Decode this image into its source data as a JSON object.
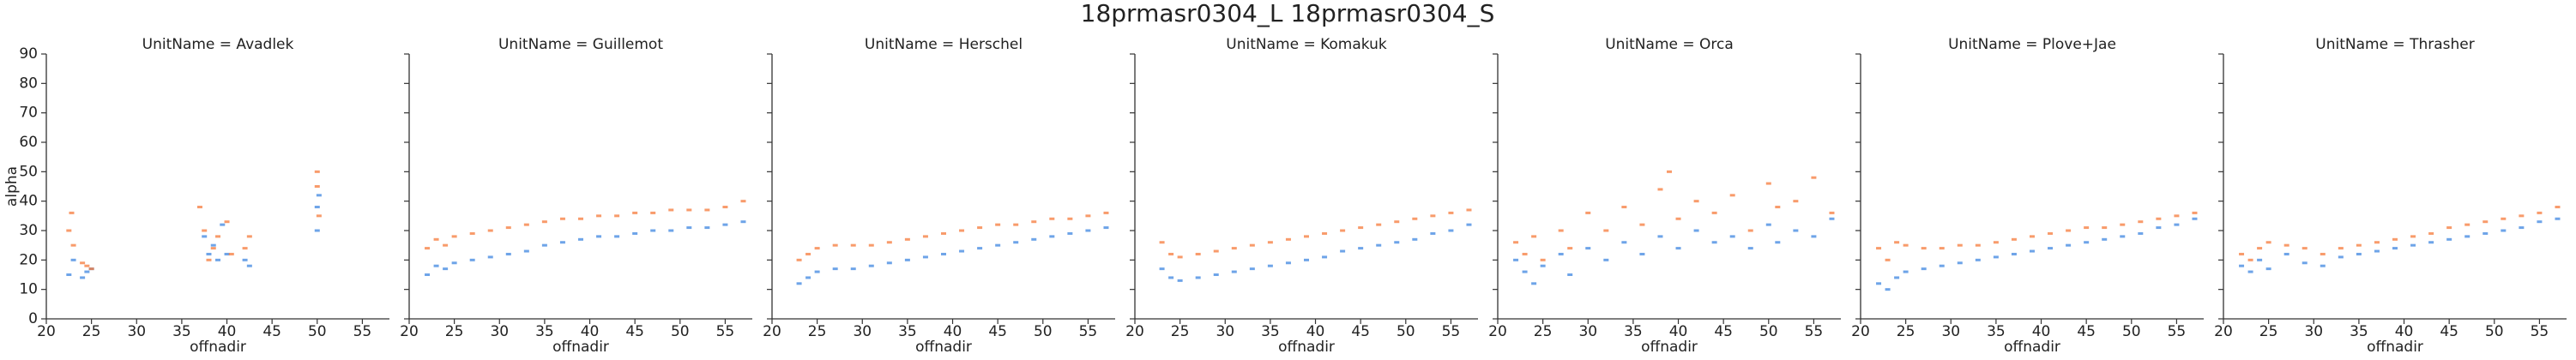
{
  "title": "18prmasr0304_L 18prmasr0304_S",
  "chart_data": [
    {
      "type": "scatter",
      "title": "UnitName = Avadlek",
      "xlabel": "offnadir",
      "ylabel": "alpha",
      "xlim": [
        20,
        58
      ],
      "xticks": [
        20,
        25,
        30,
        35,
        40,
        45,
        50,
        55
      ],
      "ylim": [
        0,
        90
      ],
      "yticks": [
        0,
        10,
        20,
        30,
        40,
        50,
        60,
        70,
        80,
        90
      ],
      "series": [
        {
          "color": "#3d85e0",
          "x": [
            22.5,
            23,
            24,
            24.5,
            25,
            37.5,
            38,
            38.5,
            39,
            39.5,
            40,
            42,
            42.5,
            50,
            50,
            50.2
          ],
          "values": [
            15,
            20,
            14,
            16,
            17,
            28,
            22,
            25,
            20,
            32,
            22,
            20,
            18,
            30,
            38,
            42
          ]
        },
        {
          "color": "#f5793a",
          "x": [
            22.5,
            22.8,
            23,
            24,
            24.5,
            25,
            37,
            37.5,
            38,
            38.5,
            39,
            40,
            40.5,
            42,
            42.5,
            50,
            50,
            50.2
          ],
          "values": [
            30,
            36,
            25,
            19,
            18,
            17,
            38,
            30,
            20,
            24,
            28,
            33,
            22,
            24,
            28,
            45,
            50,
            35
          ]
        }
      ]
    },
    {
      "type": "scatter",
      "title": "UnitName = Guillemot",
      "xlabel": "offnadir",
      "xlim": [
        20,
        58
      ],
      "xticks": [
        20,
        25,
        30,
        35,
        40,
        45,
        50,
        55
      ],
      "ylim": [
        0,
        90
      ],
      "yticks": [
        0,
        10,
        20,
        30,
        40,
        50,
        60,
        70,
        80,
        90
      ],
      "series": [
        {
          "color": "#3d85e0",
          "x": [
            22,
            23,
            24,
            25,
            27,
            29,
            31,
            33,
            35,
            37,
            39,
            41,
            43,
            45,
            47,
            49,
            51,
            53,
            55,
            57
          ],
          "values": [
            15,
            18,
            17,
            19,
            20,
            21,
            22,
            23,
            25,
            26,
            27,
            28,
            28,
            29,
            30,
            30,
            31,
            31,
            32,
            33
          ]
        },
        {
          "color": "#f5793a",
          "x": [
            22,
            23,
            24,
            25,
            27,
            29,
            31,
            33,
            35,
            37,
            39,
            41,
            43,
            45,
            47,
            49,
            51,
            53,
            55,
            57
          ],
          "values": [
            24,
            27,
            25,
            28,
            29,
            30,
            31,
            32,
            33,
            34,
            34,
            35,
            35,
            36,
            36,
            37,
            37,
            37,
            38,
            40
          ]
        }
      ]
    },
    {
      "type": "scatter",
      "title": "UnitName = Herschel",
      "xlabel": "offnadir",
      "xlim": [
        20,
        58
      ],
      "xticks": [
        20,
        25,
        30,
        35,
        40,
        45,
        50,
        55
      ],
      "ylim": [
        0,
        90
      ],
      "yticks": [
        0,
        10,
        20,
        30,
        40,
        50,
        60,
        70,
        80,
        90
      ],
      "series": [
        {
          "color": "#3d85e0",
          "x": [
            23,
            24,
            25,
            27,
            29,
            31,
            33,
            35,
            37,
            39,
            41,
            43,
            45,
            47,
            49,
            51,
            53,
            55,
            57
          ],
          "values": [
            12,
            14,
            16,
            17,
            17,
            18,
            19,
            20,
            21,
            22,
            23,
            24,
            25,
            26,
            27,
            28,
            29,
            30,
            31
          ]
        },
        {
          "color": "#f5793a",
          "x": [
            23,
            24,
            25,
            27,
            29,
            31,
            33,
            35,
            37,
            39,
            41,
            43,
            45,
            47,
            49,
            51,
            53,
            55,
            57
          ],
          "values": [
            20,
            22,
            24,
            25,
            25,
            25,
            26,
            27,
            28,
            29,
            30,
            31,
            32,
            32,
            33,
            34,
            34,
            35,
            36
          ]
        }
      ]
    },
    {
      "type": "scatter",
      "title": "UnitName = Komakuk",
      "xlabel": "offnadir",
      "xlim": [
        20,
        58
      ],
      "xticks": [
        20,
        25,
        30,
        35,
        40,
        45,
        50,
        55
      ],
      "ylim": [
        0,
        90
      ],
      "yticks": [
        0,
        10,
        20,
        30,
        40,
        50,
        60,
        70,
        80,
        90
      ],
      "series": [
        {
          "color": "#3d85e0",
          "x": [
            23,
            24,
            25,
            27,
            29,
            31,
            33,
            35,
            37,
            39,
            41,
            43,
            45,
            47,
            49,
            51,
            53,
            55,
            57
          ],
          "values": [
            17,
            14,
            13,
            14,
            15,
            16,
            17,
            18,
            19,
            20,
            21,
            23,
            24,
            25,
            26,
            27,
            29,
            30,
            32
          ]
        },
        {
          "color": "#f5793a",
          "x": [
            23,
            24,
            25,
            27,
            29,
            31,
            33,
            35,
            37,
            39,
            41,
            43,
            45,
            47,
            49,
            51,
            53,
            55,
            57
          ],
          "values": [
            26,
            22,
            21,
            22,
            23,
            24,
            25,
            26,
            27,
            28,
            29,
            30,
            31,
            32,
            33,
            34,
            35,
            36,
            37
          ]
        }
      ]
    },
    {
      "type": "scatter",
      "title": "UnitName = Orca",
      "xlabel": "offnadir",
      "xlim": [
        20,
        58
      ],
      "xticks": [
        20,
        25,
        30,
        35,
        40,
        45,
        50,
        55
      ],
      "ylim": [
        0,
        90
      ],
      "yticks": [
        0,
        10,
        20,
        30,
        40,
        50,
        60,
        70,
        80,
        90
      ],
      "series": [
        {
          "color": "#3d85e0",
          "x": [
            22,
            23,
            24,
            25,
            27,
            28,
            30,
            32,
            34,
            36,
            38,
            40,
            42,
            44,
            46,
            48,
            50,
            51,
            53,
            55,
            57
          ],
          "values": [
            20,
            16,
            12,
            18,
            22,
            15,
            24,
            20,
            26,
            22,
            28,
            24,
            30,
            26,
            28,
            24,
            32,
            26,
            30,
            28,
            34
          ]
        },
        {
          "color": "#f5793a",
          "x": [
            22,
            23,
            24,
            25,
            27,
            28,
            30,
            32,
            34,
            36,
            38,
            39,
            40,
            42,
            44,
            46,
            48,
            50,
            51,
            53,
            55,
            57
          ],
          "values": [
            26,
            22,
            28,
            20,
            30,
            24,
            36,
            30,
            38,
            32,
            44,
            50,
            34,
            40,
            36,
            42,
            30,
            46,
            38,
            40,
            48,
            36
          ]
        }
      ]
    },
    {
      "type": "scatter",
      "title": "UnitName = Plove+Jae",
      "xlabel": "offnadir",
      "xlim": [
        20,
        58
      ],
      "xticks": [
        20,
        25,
        30,
        35,
        40,
        45,
        50,
        55
      ],
      "ylim": [
        0,
        90
      ],
      "yticks": [
        0,
        10,
        20,
        30,
        40,
        50,
        60,
        70,
        80,
        90
      ],
      "series": [
        {
          "color": "#3d85e0",
          "x": [
            22,
            23,
            24,
            25,
            27,
            29,
            31,
            33,
            35,
            37,
            39,
            41,
            43,
            45,
            47,
            49,
            51,
            53,
            55,
            57
          ],
          "values": [
            12,
            10,
            14,
            16,
            17,
            18,
            19,
            20,
            21,
            22,
            23,
            24,
            25,
            26,
            27,
            28,
            29,
            31,
            32,
            34
          ]
        },
        {
          "color": "#f5793a",
          "x": [
            22,
            23,
            24,
            25,
            27,
            29,
            31,
            33,
            35,
            37,
            39,
            41,
            43,
            45,
            47,
            49,
            51,
            53,
            55,
            57
          ],
          "values": [
            24,
            20,
            26,
            25,
            24,
            24,
            25,
            25,
            26,
            27,
            28,
            29,
            30,
            31,
            31,
            32,
            33,
            34,
            35,
            36
          ]
        }
      ]
    },
    {
      "type": "scatter",
      "title": "UnitName = Thrasher",
      "xlabel": "offnadir",
      "xlim": [
        20,
        58
      ],
      "xticks": [
        20,
        25,
        30,
        35,
        40,
        45,
        50,
        55
      ],
      "ylim": [
        0,
        90
      ],
      "yticks": [
        0,
        10,
        20,
        30,
        40,
        50,
        60,
        70,
        80,
        90
      ],
      "series": [
        {
          "color": "#3d85e0",
          "x": [
            22,
            23,
            24,
            25,
            27,
            29,
            31,
            33,
            35,
            37,
            39,
            41,
            43,
            45,
            47,
            49,
            51,
            53,
            55,
            57
          ],
          "values": [
            18,
            16,
            20,
            17,
            22,
            19,
            18,
            21,
            22,
            23,
            24,
            25,
            26,
            27,
            28,
            29,
            30,
            31,
            33,
            34
          ]
        },
        {
          "color": "#f5793a",
          "x": [
            22,
            23,
            24,
            25,
            27,
            29,
            31,
            33,
            35,
            37,
            39,
            41,
            43,
            45,
            47,
            49,
            51,
            53,
            55,
            57
          ],
          "values": [
            22,
            20,
            24,
            26,
            25,
            24,
            22,
            24,
            25,
            26,
            27,
            28,
            29,
            31,
            32,
            33,
            34,
            35,
            36,
            38
          ]
        }
      ]
    }
  ]
}
